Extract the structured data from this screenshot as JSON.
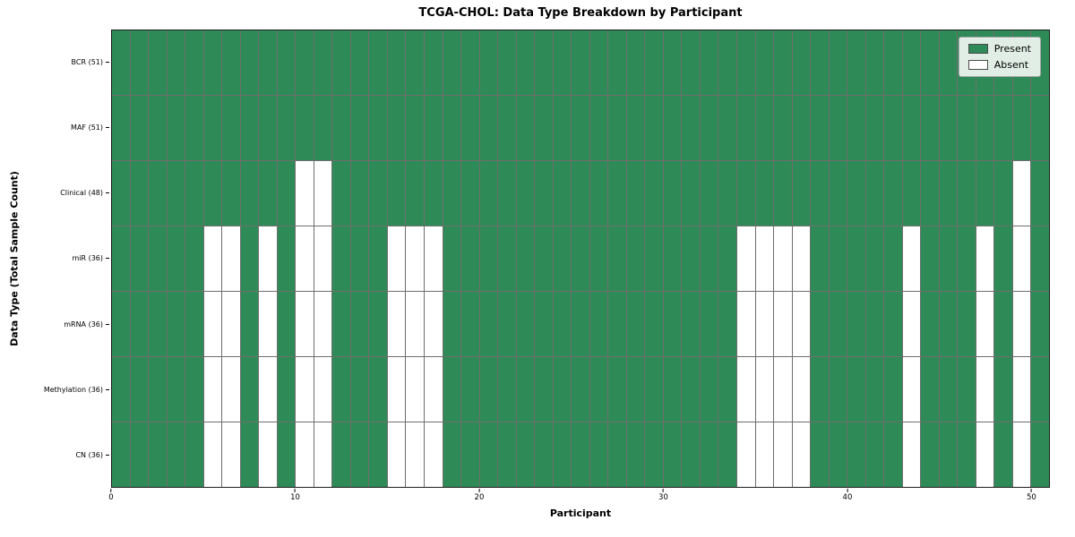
{
  "chart_data": {
    "type": "heatmap",
    "title": "TCGA-CHOL: Data Type Breakdown by Participant",
    "xlabel": "Participant",
    "ylabel": "Data Type (Total Sample Count)",
    "n_participants": 51,
    "x_ticks": [
      0,
      10,
      20,
      30,
      40,
      50
    ],
    "grid": true,
    "legend_position": "upper right",
    "rows": [
      {
        "label": "BCR (51)",
        "total_present": 51,
        "absent": []
      },
      {
        "label": "MAF (51)",
        "total_present": 51,
        "absent": []
      },
      {
        "label": "Clinical (48)",
        "total_present": 48,
        "absent": [
          10,
          11,
          49
        ]
      },
      {
        "label": "miR (36)",
        "total_present": 36,
        "absent": [
          5,
          6,
          8,
          10,
          11,
          15,
          16,
          17,
          34,
          35,
          36,
          37,
          43,
          47,
          49
        ]
      },
      {
        "label": "mRNA (36)",
        "total_present": 36,
        "absent": [
          5,
          6,
          8,
          10,
          11,
          15,
          16,
          17,
          34,
          35,
          36,
          37,
          43,
          47,
          49
        ]
      },
      {
        "label": "Methylation (36)",
        "total_present": 36,
        "absent": [
          5,
          6,
          8,
          10,
          11,
          15,
          16,
          17,
          34,
          35,
          36,
          37,
          43,
          47,
          49
        ]
      },
      {
        "label": "CN (36)",
        "total_present": 36,
        "absent": [
          5,
          6,
          8,
          10,
          11,
          15,
          16,
          17,
          34,
          35,
          36,
          37,
          43,
          47,
          49
        ]
      }
    ],
    "legend": [
      {
        "label": "Present",
        "color": "#2e8b57"
      },
      {
        "label": "Absent",
        "color": "#ffffff"
      }
    ],
    "colors": {
      "present": "#2e8b57",
      "absent": "#ffffff",
      "grid_line": "#6e6e6e",
      "border": "#1c1c1c"
    }
  }
}
